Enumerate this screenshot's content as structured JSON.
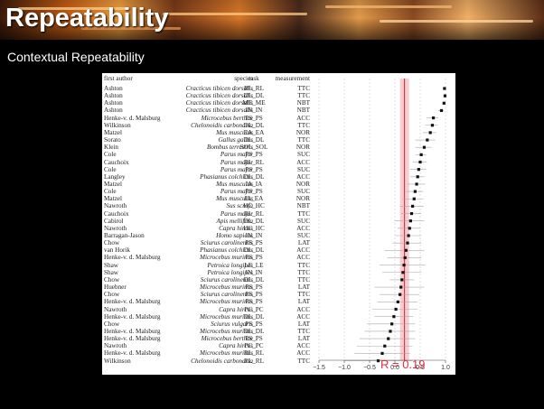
{
  "slide": {
    "title": "Repeatability",
    "subtitle": "Contextual Repeatability",
    "r_annotation": "R = 0.19",
    "colors": {
      "banner_text": "#ffffff",
      "annotation": "#e03040",
      "band": "#f7c6c8",
      "points": "#111111"
    }
  },
  "table": {
    "headers": {
      "author": "first author",
      "species": "species",
      "task": "task",
      "measurement": "measurement"
    },
    "rows": [
      {
        "author": "Ashton",
        "species": "Cracticus tibicen dorsalis",
        "task": "RL_RL",
        "measurement": "TTC"
      },
      {
        "author": "Ashton",
        "species": "Cracticus tibicen dorsalis",
        "task": "DL_DL",
        "measurement": "TTC"
      },
      {
        "author": "Ashton",
        "species": "Cracticus tibicen dorsalis",
        "task": "ME_ME",
        "measurement": "NBT"
      },
      {
        "author": "Ashton",
        "species": "Cracticus tibicen dorsalis",
        "task": "IN_IN",
        "measurement": "NBT"
      },
      {
        "author": "Henke-v. d. Malsburg",
        "species": "Microcebus berthae",
        "task": "PS_PS",
        "measurement": "ACC"
      },
      {
        "author": "Wilkinson",
        "species": "Chelonoidis carbonaria",
        "task": "DL_DL",
        "measurement": "TTC"
      },
      {
        "author": "Matzel",
        "species": "Mus musculus",
        "task": "EA_EA",
        "measurement": "NOR"
      },
      {
        "author": "Sorato",
        "species": "Gallus gallus",
        "task": "DL_DL",
        "measurement": "TTC"
      },
      {
        "author": "Klein",
        "species": "Bombus terrestris",
        "task": "SOL_SOL",
        "measurement": "NOR"
      },
      {
        "author": "Cole",
        "species": "Parus major",
        "task": "PS_PS",
        "measurement": "SUC"
      },
      {
        "author": "Cauchoix",
        "species": "Parus major",
        "task": "RL_RL",
        "measurement": "ACC"
      },
      {
        "author": "Cole",
        "species": "Parus major",
        "task": "PS_PS",
        "measurement": "SUC"
      },
      {
        "author": "Langley",
        "species": "Phasianus colchicus",
        "task": "DL_DL",
        "measurement": "ACC"
      },
      {
        "author": "Matzel",
        "species": "Mus musculus",
        "task": "IA_IA",
        "measurement": "NOR"
      },
      {
        "author": "Cole",
        "species": "Parus major",
        "task": "PS_PS",
        "measurement": "SUC"
      },
      {
        "author": "Matzel",
        "species": "Mus musculus",
        "task": "IA_EA",
        "measurement": "NOR"
      },
      {
        "author": "Nawroth",
        "species": "Sus scrofa",
        "task": "HC_HC",
        "measurement": "NBT"
      },
      {
        "author": "Cauchoix",
        "species": "Parus major",
        "task": "RL_RL",
        "measurement": "TTC"
      },
      {
        "author": "Cabirol",
        "species": "Apis mellifera",
        "task": "DL_DL",
        "measurement": "SUC"
      },
      {
        "author": "Nawroth",
        "species": "Capra hircus",
        "task": "HC_HC",
        "measurement": "ACC"
      },
      {
        "author": "Barragan-Jason",
        "species": "Homo sapiens",
        "task": "IN_IN",
        "measurement": "SUC"
      },
      {
        "author": "Chow",
        "species": "Sciurus carolinensis",
        "task": "PS_PS",
        "measurement": "LAT"
      },
      {
        "author": "van Horik",
        "species": "Phasianus colchicus",
        "task": "DL_DL",
        "measurement": "ACC"
      },
      {
        "author": "Henke-v. d. Malsburg",
        "species": "Microcebus murinus",
        "task": "PS_PS",
        "measurement": "ACC"
      },
      {
        "author": "Shaw",
        "species": "Petroica longipes",
        "task": "LE_LE",
        "measurement": "TTC"
      },
      {
        "author": "Shaw",
        "species": "Petroica longipes",
        "task": "IN_IN",
        "measurement": "TTC"
      },
      {
        "author": "Chow",
        "species": "Sciurus carolinensis",
        "task": "DL_DL",
        "measurement": "TTC"
      },
      {
        "author": "Huebner",
        "species": "Microcebus murinus",
        "task": "PS_PS",
        "measurement": "LAT"
      },
      {
        "author": "Chow",
        "species": "Sciurus carolinensis",
        "task": "PS_PS",
        "measurement": "TTC"
      },
      {
        "author": "Henke-v. d. Malsburg",
        "species": "Microcebus murinus",
        "task": "PS_PS",
        "measurement": "LAT"
      },
      {
        "author": "Nawroth",
        "species": "Capra hircus",
        "task": "PC_PC",
        "measurement": "ACC"
      },
      {
        "author": "Henke-v. d. Malsburg",
        "species": "Microcebus murinus",
        "task": "DL_DL",
        "measurement": "ACC"
      },
      {
        "author": "Chow",
        "species": "Sciurus vulgaris",
        "task": "PS_PS",
        "measurement": "LAT"
      },
      {
        "author": "Henke-v. d. Malsburg",
        "species": "Microcebus murinus",
        "task": "DL_DL",
        "measurement": "TTC"
      },
      {
        "author": "Henke-v. d. Malsburg",
        "species": "Microcebus berthae",
        "task": "PS_PS",
        "measurement": "LAT"
      },
      {
        "author": "Nawroth",
        "species": "Capra hircus",
        "task": "PC_PC",
        "measurement": "ACC"
      },
      {
        "author": "Henke-v. d. Malsburg",
        "species": "Microcebus murinus",
        "task": "RL_RL",
        "measurement": "ACC"
      },
      {
        "author": "Wilkinson",
        "species": "Chelonoidis carbonaria",
        "task": "RL_RL",
        "measurement": "TTC"
      }
    ]
  },
  "chart_data": {
    "type": "scatter",
    "orientation": "forest",
    "xlim": [
      -1.5,
      1.0
    ],
    "xticks": [
      -1.5,
      -1.0,
      -0.5,
      0.0,
      0.5,
      1.0
    ],
    "xtick_labels": [
      "−1.5",
      "−1.0",
      "−0.5",
      "0.0",
      "0.5",
      "1.0"
    ],
    "xlabel": "",
    "pooled_estimate": 0.19,
    "pooled_ci": [
      0.1,
      0.28
    ],
    "grid": true,
    "estimates": [
      0.98,
      0.99,
      0.97,
      0.92,
      0.76,
      0.74,
      0.7,
      0.64,
      0.58,
      0.52,
      0.5,
      0.47,
      0.45,
      0.43,
      0.4,
      0.38,
      0.35,
      0.33,
      0.31,
      0.29,
      0.27,
      0.25,
      0.22,
      0.2,
      0.18,
      0.16,
      0.14,
      0.12,
      0.1,
      0.06,
      0.02,
      -0.02,
      -0.06,
      -0.09,
      -0.13,
      -0.2,
      -0.25,
      -0.33
    ],
    "ci_low": [
      0.97,
      0.98,
      0.95,
      0.85,
      0.62,
      0.6,
      0.55,
      0.4,
      0.4,
      0.4,
      0.35,
      0.3,
      0.3,
      0.25,
      0.22,
      0.15,
      0.1,
      0.12,
      0.0,
      0.05,
      0.0,
      -0.05,
      -0.2,
      -0.15,
      -0.3,
      -0.25,
      -0.1,
      -0.4,
      -0.3,
      -0.35,
      -0.45,
      -0.4,
      -0.55,
      -0.6,
      -0.7,
      -0.75,
      -0.8,
      -1.0
    ],
    "ci_high": [
      0.99,
      1.0,
      0.99,
      0.97,
      0.86,
      0.85,
      0.82,
      0.8,
      0.72,
      0.62,
      0.63,
      0.62,
      0.58,
      0.6,
      0.56,
      0.57,
      0.57,
      0.52,
      0.58,
      0.5,
      0.52,
      0.52,
      0.58,
      0.52,
      0.6,
      0.52,
      0.38,
      0.58,
      0.48,
      0.45,
      0.45,
      0.36,
      0.4,
      0.4,
      0.4,
      0.35,
      0.3,
      0.35
    ]
  }
}
